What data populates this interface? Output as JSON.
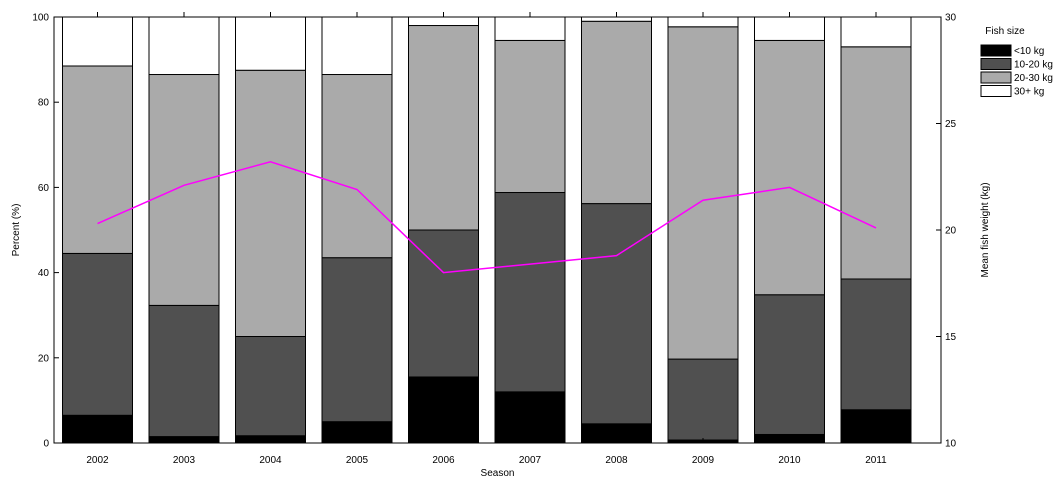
{
  "chart_data": {
    "type": "bar",
    "stacked": true,
    "categories": [
      "2002",
      "2003",
      "2004",
      "2005",
      "2006",
      "2007",
      "2008",
      "2009",
      "2010",
      "2011"
    ],
    "series": [
      {
        "name": "<10 kg",
        "color": "#000000",
        "values": [
          6.5,
          1.5,
          1.7,
          5.0,
          15.5,
          12.0,
          4.5,
          0.7,
          2.0,
          7.8
        ]
      },
      {
        "name": "10-20 kg",
        "color": "#505050",
        "values": [
          38.0,
          30.8,
          23.3,
          38.5,
          34.5,
          46.8,
          51.7,
          19.0,
          32.8,
          30.7
        ]
      },
      {
        "name": "20-30 kg",
        "color": "#aaaaaa",
        "values": [
          44.0,
          54.2,
          62.5,
          43.0,
          48.0,
          35.7,
          42.8,
          78.0,
          59.7,
          54.5
        ]
      },
      {
        "name": "30+ kg",
        "color": "#ffffff",
        "values": [
          11.5,
          13.5,
          12.5,
          13.5,
          2.0,
          5.5,
          1.0,
          2.3,
          5.5,
          7.0
        ]
      }
    ],
    "line": {
      "color": "#ff00ff",
      "values": [
        20.3,
        22.1,
        23.2,
        21.9,
        18.0,
        18.4,
        18.8,
        21.4,
        22.0,
        20.1
      ]
    },
    "xlabel": "Season",
    "ylabel": "Percent (%)",
    "y2label": "Mean fish weight (kg)",
    "ylim": [
      0,
      100
    ],
    "y2lim": [
      10,
      30
    ],
    "yticks": [
      "0",
      "20",
      "40",
      "60",
      "80",
      "100"
    ],
    "y2ticks": [
      "10",
      "15",
      "20",
      "25",
      "30"
    ],
    "legend": {
      "title": "Fish size",
      "placement": "top-right"
    },
    "grid": false
  }
}
